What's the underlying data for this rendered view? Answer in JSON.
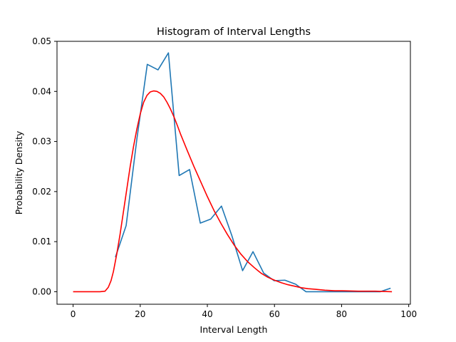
{
  "chart_data": {
    "type": "line",
    "title": "Histogram of Interval Lengths",
    "xlabel": "Interval Length",
    "ylabel": "Probability Density",
    "xlim": [
      -4.8,
      100.5
    ],
    "ylim": [
      -0.0025,
      0.05
    ],
    "xticks": [
      0,
      20,
      40,
      60,
      80,
      100
    ],
    "yticks": [
      0.0,
      0.01,
      0.02,
      0.03,
      0.04,
      0.05
    ],
    "ytick_labels": [
      "0.00",
      "0.01",
      "0.02",
      "0.03",
      "0.04",
      "0.05"
    ],
    "grid": false,
    "legend": "none",
    "series": [
      {
        "color": "#1f77b4",
        "x": [
          12.6,
          15.8,
          19.0,
          22.1,
          25.3,
          28.4,
          31.6,
          34.7,
          37.9,
          41.0,
          44.2,
          47.3,
          50.5,
          53.6,
          56.8,
          59.9,
          63.1,
          66.3,
          69.4,
          72.6,
          75.7,
          78.9,
          82.0,
          85.2,
          88.3,
          91.5,
          94.6
        ],
        "y": [
          0.0069,
          0.0132,
          0.0305,
          0.0454,
          0.0443,
          0.0477,
          0.0232,
          0.0244,
          0.0137,
          0.0145,
          0.0171,
          0.0112,
          0.0042,
          0.008,
          0.0037,
          0.0022,
          0.0023,
          0.0015,
          0.0,
          0.0,
          0.0,
          0.0,
          0.0,
          0.0,
          0.0,
          0.0,
          0.0007
        ]
      },
      {
        "color": "#ff0000",
        "x": [
          0,
          2,
          4,
          6,
          8,
          9.5,
          10.5,
          11.3,
          12,
          13,
          14,
          15,
          16,
          17,
          18,
          19,
          20,
          21,
          22,
          23,
          24,
          25,
          26,
          27,
          28,
          29,
          30,
          31,
          32,
          34,
          36,
          38,
          40,
          42,
          44,
          46,
          48,
          50,
          52,
          54,
          56,
          58,
          60,
          62,
          64,
          66,
          68,
          70,
          72,
          75,
          78,
          80,
          85,
          90,
          95
        ],
        "y": [
          0,
          0,
          0,
          0,
          0,
          0.0001,
          0.0009,
          0.0022,
          0.004,
          0.0075,
          0.0115,
          0.016,
          0.0205,
          0.025,
          0.029,
          0.0325,
          0.0355,
          0.0378,
          0.0392,
          0.0399,
          0.0401,
          0.04,
          0.0396,
          0.0389,
          0.0378,
          0.0365,
          0.035,
          0.0333,
          0.0315,
          0.0282,
          0.025,
          0.022,
          0.019,
          0.0162,
          0.0137,
          0.0114,
          0.0093,
          0.0075,
          0.006,
          0.0048,
          0.0037,
          0.0029,
          0.0023,
          0.0018,
          0.0014,
          0.0011,
          0.0008,
          0.0006,
          0.0005,
          0.0003,
          0.0002,
          0.0002,
          0.0001,
          0.0001,
          0.0
        ]
      }
    ]
  }
}
